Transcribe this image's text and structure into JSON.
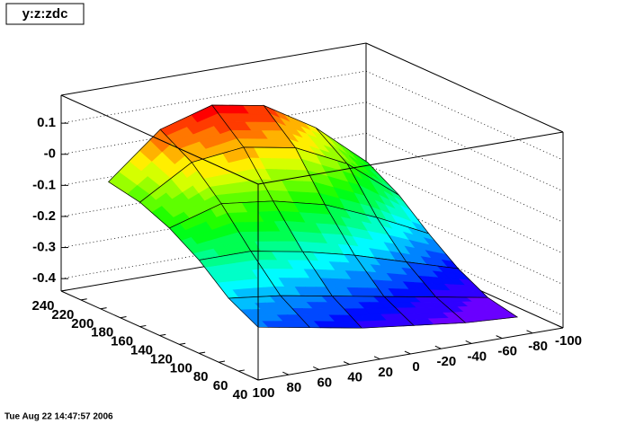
{
  "chart_data": {
    "type": "surface",
    "title": "y:z:zdc",
    "date": "Tue Aug 22 14:47:57 2006",
    "x": [
      100,
      66,
      32,
      -2,
      -36,
      -70
    ],
    "y": [
      40,
      70,
      100,
      130,
      160,
      192
    ],
    "z": [
      [
        -0.27,
        -0.3,
        -0.33,
        -0.35,
        -0.37,
        -0.38
      ],
      [
        -0.22,
        -0.24,
        -0.27,
        -0.3,
        -0.33,
        -0.36
      ],
      [
        -0.14,
        -0.14,
        -0.17,
        -0.21,
        -0.26,
        -0.31
      ],
      [
        -0.08,
        -0.03,
        -0.05,
        -0.09,
        -0.16,
        -0.24
      ],
      [
        -0.04,
        0.06,
        0.08,
        0.05,
        -0.03,
        -0.16
      ],
      [
        -0.02,
        0.12,
        0.17,
        0.14,
        0.04,
        -0.1
      ]
    ],
    "xlim": [
      100,
      -100
    ],
    "ylim": [
      40,
      240
    ],
    "zlim": [
      -0.44,
      0.19
    ],
    "xticks": [
      100,
      80,
      60,
      40,
      20,
      0,
      -20,
      -40,
      -60,
      -80,
      -100
    ],
    "yticks": [
      240,
      220,
      200,
      180,
      160,
      140,
      120,
      100,
      80,
      60,
      40
    ],
    "zticks": [
      0.1,
      {
        "value": 0,
        "label": "-0"
      },
      -0.1,
      -0.2,
      -0.3,
      -0.4
    ],
    "grid": true
  }
}
